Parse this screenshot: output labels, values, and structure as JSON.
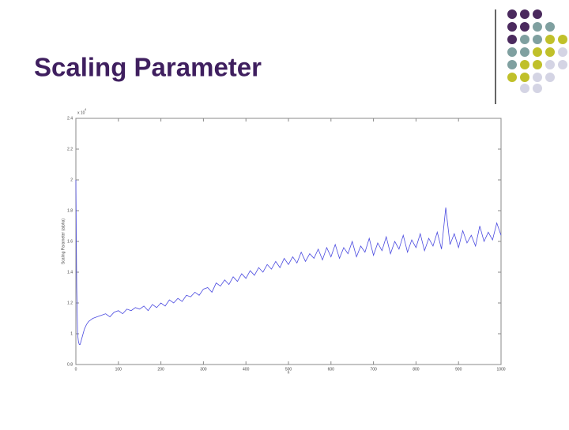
{
  "title": "Scaling Parameter",
  "chart_data": {
    "type": "line",
    "xlabel": "n",
    "ylabel": "Scaling Parameter (alpha)",
    "y_multiplier": "x 10",
    "y_exponent": "4",
    "xlim": [
      0,
      1000
    ],
    "ylim": [
      0.8,
      2.4
    ],
    "xticks": [
      0,
      100,
      200,
      300,
      400,
      500,
      600,
      700,
      800,
      900,
      1000
    ],
    "yticks": [
      0.8,
      1,
      1.2,
      1.4,
      1.6,
      1.8,
      2,
      2.2,
      2.4
    ],
    "x": [
      0,
      2,
      4,
      6,
      8,
      10,
      12,
      15,
      20,
      25,
      30,
      35,
      40,
      50,
      60,
      70,
      80,
      90,
      100,
      110,
      120,
      130,
      140,
      150,
      160,
      170,
      180,
      190,
      200,
      210,
      220,
      230,
      240,
      250,
      260,
      270,
      280,
      290,
      300,
      310,
      320,
      330,
      340,
      350,
      360,
      370,
      380,
      390,
      400,
      410,
      420,
      430,
      440,
      450,
      460,
      470,
      480,
      490,
      500,
      510,
      520,
      530,
      540,
      550,
      560,
      570,
      580,
      590,
      600,
      610,
      620,
      630,
      640,
      650,
      660,
      670,
      680,
      690,
      700,
      710,
      720,
      730,
      740,
      750,
      760,
      770,
      780,
      790,
      800,
      810,
      820,
      830,
      840,
      850,
      860,
      870,
      880,
      890,
      900,
      910,
      920,
      930,
      940,
      950,
      960,
      970,
      980,
      990,
      1000
    ],
    "series": [
      {
        "name": "alpha",
        "color": "#4a4ae0",
        "values": [
          2.0,
          1.3,
          1.0,
          0.95,
          0.93,
          0.93,
          0.95,
          0.98,
          1.03,
          1.06,
          1.08,
          1.09,
          1.1,
          1.11,
          1.12,
          1.13,
          1.11,
          1.14,
          1.15,
          1.13,
          1.16,
          1.15,
          1.17,
          1.16,
          1.18,
          1.15,
          1.19,
          1.17,
          1.2,
          1.18,
          1.22,
          1.2,
          1.23,
          1.21,
          1.25,
          1.24,
          1.27,
          1.25,
          1.29,
          1.3,
          1.27,
          1.33,
          1.31,
          1.35,
          1.32,
          1.37,
          1.34,
          1.39,
          1.36,
          1.41,
          1.38,
          1.43,
          1.4,
          1.45,
          1.42,
          1.47,
          1.43,
          1.49,
          1.45,
          1.5,
          1.46,
          1.53,
          1.47,
          1.52,
          1.49,
          1.55,
          1.48,
          1.56,
          1.5,
          1.58,
          1.49,
          1.56,
          1.52,
          1.6,
          1.5,
          1.57,
          1.53,
          1.62,
          1.51,
          1.59,
          1.54,
          1.63,
          1.52,
          1.6,
          1.55,
          1.64,
          1.53,
          1.61,
          1.56,
          1.65,
          1.54,
          1.62,
          1.57,
          1.66,
          1.55,
          1.82,
          1.58,
          1.65,
          1.56,
          1.67,
          1.59,
          1.64,
          1.57,
          1.7,
          1.6,
          1.66,
          1.61,
          1.72,
          1.64
        ]
      }
    ],
    "grid": false
  }
}
